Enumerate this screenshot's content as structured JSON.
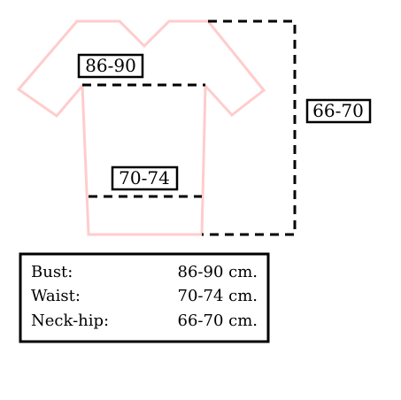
{
  "colors": {
    "shirt_outline": "#ffcccc",
    "measure_line": "#000000",
    "box_border": "#000000",
    "background": "#ffffff"
  },
  "labels": {
    "bust_tag": "86-90",
    "waist_tag": "70-74",
    "neck_hip_tag": "66-70"
  },
  "table": {
    "rows": [
      {
        "name": "Bust:",
        "value": "86-90 cm."
      },
      {
        "name": "Waist:",
        "value": "70-74 cm."
      },
      {
        "name": "Neck-hip:",
        "value": "66-70 cm."
      }
    ]
  }
}
